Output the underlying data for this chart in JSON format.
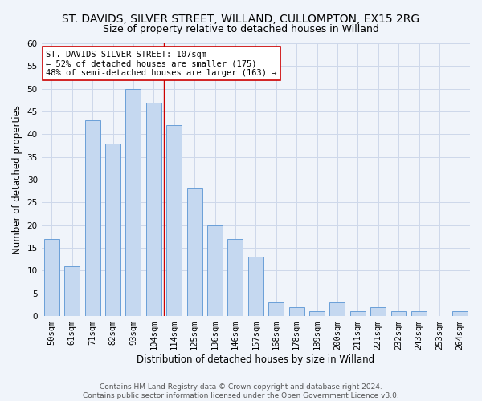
{
  "title_line1": "ST. DAVIDS, SILVER STREET, WILLAND, CULLOMPTON, EX15 2RG",
  "title_line2": "Size of property relative to detached houses in Willand",
  "xlabel": "Distribution of detached houses by size in Willand",
  "ylabel": "Number of detached properties",
  "bar_labels": [
    "50sqm",
    "61sqm",
    "71sqm",
    "82sqm",
    "93sqm",
    "104sqm",
    "114sqm",
    "125sqm",
    "136sqm",
    "146sqm",
    "157sqm",
    "168sqm",
    "178sqm",
    "189sqm",
    "200sqm",
    "211sqm",
    "221sqm",
    "232sqm",
    "243sqm",
    "253sqm",
    "264sqm"
  ],
  "bar_values": [
    17,
    11,
    43,
    38,
    50,
    47,
    42,
    28,
    20,
    17,
    13,
    3,
    2,
    1,
    3,
    1,
    2,
    1,
    1,
    0,
    1
  ],
  "bar_color": "#c5d8f0",
  "bar_edge_color": "#6a9fd8",
  "grid_color": "#cdd8ea",
  "background_color": "#f0f4fa",
  "vline_x_index": 5,
  "vline_color": "#cc0000",
  "annotation_title": "ST. DAVIDS SILVER STREET: 107sqm",
  "annotation_line1": "← 52% of detached houses are smaller (175)",
  "annotation_line2": "48% of semi-detached houses are larger (163) →",
  "annotation_box_color": "#ffffff",
  "annotation_box_edge": "#cc0000",
  "ylim": [
    0,
    60
  ],
  "yticks": [
    0,
    5,
    10,
    15,
    20,
    25,
    30,
    35,
    40,
    45,
    50,
    55,
    60
  ],
  "footer_line1": "Contains HM Land Registry data © Crown copyright and database right 2024.",
  "footer_line2": "Contains public sector information licensed under the Open Government Licence v3.0.",
  "title_fontsize": 10,
  "subtitle_fontsize": 9,
  "axis_label_fontsize": 8.5,
  "tick_fontsize": 7.5,
  "annotation_fontsize": 7.5,
  "footer_fontsize": 6.5,
  "bar_width": 0.75
}
